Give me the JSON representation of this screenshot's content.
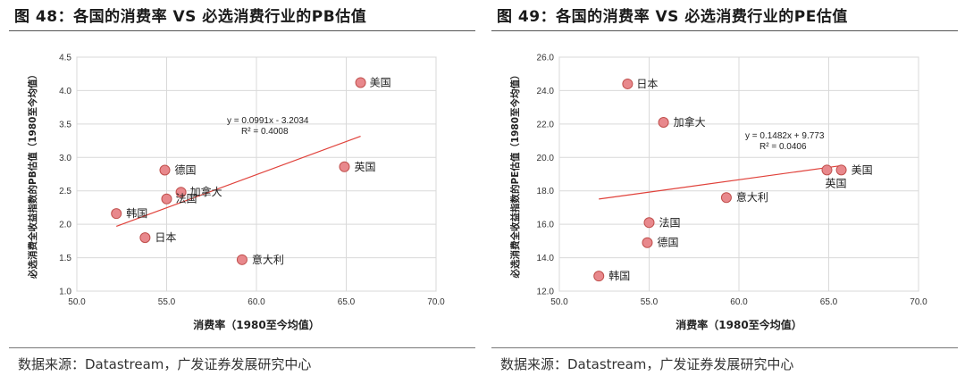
{
  "charts": [
    {
      "figure_title": "图 48：各国的消费率 VS 必选消费行业的PB估值",
      "source": "数据来源：Datastream，广发证券发展研究中心",
      "chart_data": {
        "type": "scatter",
        "xlabel": "消费率（1980至今均值）",
        "ylabel": "必选消费全收益指数的PB估值（1980至今均值）",
        "xlim": [
          50.0,
          70.0
        ],
        "ylim": [
          1.0,
          4.5
        ],
        "xticks": [
          "50.0",
          "55.0",
          "60.0",
          "65.0",
          "70.0"
        ],
        "yticks": [
          "1.0",
          "1.5",
          "2.0",
          "2.5",
          "3.0",
          "3.5",
          "4.0",
          "4.5"
        ],
        "points": [
          {
            "label": "美国",
            "x": 65.8,
            "y": 4.12
          },
          {
            "label": "英国",
            "x": 64.9,
            "y": 2.86
          },
          {
            "label": "德国",
            "x": 54.9,
            "y": 2.81
          },
          {
            "label": "加拿大",
            "x": 55.8,
            "y": 2.48
          },
          {
            "label": "法国",
            "x": 55.0,
            "y": 2.38
          },
          {
            "label": "韩国",
            "x": 52.2,
            "y": 2.16
          },
          {
            "label": "日本",
            "x": 53.8,
            "y": 1.8
          },
          {
            "label": "意大利",
            "x": 59.2,
            "y": 1.47
          }
        ],
        "trendline": {
          "slope": 0.0991,
          "intercept": -3.2034,
          "x_range": [
            52.2,
            65.8
          ]
        },
        "equation": "y = 0.0991x - 3.2034",
        "r2": "R² = 0.4008",
        "grid": true,
        "marker_color": "#e8888c",
        "line_color": "#e0413a"
      }
    },
    {
      "figure_title": "图 49：各国的消费率 VS 必选消费行业的PE估值",
      "source": "数据来源：Datastream，广发证券发展研究中心",
      "chart_data": {
        "type": "scatter",
        "xlabel": "消费率（1980至今均值）",
        "ylabel": "必选消费全收益指数的PE估值（1980至今均值）",
        "xlim": [
          50.0,
          70.0
        ],
        "ylim": [
          12.0,
          26.0
        ],
        "xticks": [
          "50.0",
          "55.0",
          "60.0",
          "65.0",
          "70.0"
        ],
        "yticks": [
          "12.0",
          "14.0",
          "16.0",
          "18.0",
          "20.0",
          "22.0",
          "24.0",
          "26.0"
        ],
        "points": [
          {
            "label": "日本",
            "x": 53.8,
            "y": 24.4
          },
          {
            "label": "加拿大",
            "x": 55.8,
            "y": 22.1
          },
          {
            "label": "美国",
            "x": 65.7,
            "y": 19.25
          },
          {
            "label": "英国",
            "x": 64.9,
            "y": 19.25
          },
          {
            "label": "意大利",
            "x": 59.3,
            "y": 17.6
          },
          {
            "label": "法国",
            "x": 55.0,
            "y": 16.1
          },
          {
            "label": "德国",
            "x": 54.9,
            "y": 14.9
          },
          {
            "label": "韩国",
            "x": 52.2,
            "y": 12.9
          }
        ],
        "trendline": {
          "slope": 0.1482,
          "intercept": 9.773,
          "x_range": [
            52.2,
            65.7
          ]
        },
        "equation": "y = 0.1482x + 9.773",
        "r2": "R² = 0.0406",
        "grid": true,
        "marker_color": "#e8888c",
        "line_color": "#e0413a"
      }
    }
  ]
}
